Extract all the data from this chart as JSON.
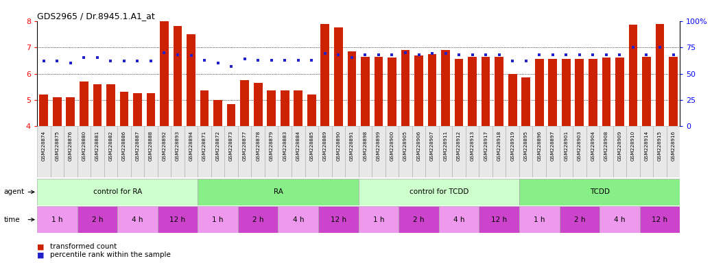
{
  "title": "GDS2965 / Dr.8945.1.A1_at",
  "samples": [
    "GSM228874",
    "GSM228875",
    "GSM228876",
    "GSM228880",
    "GSM228881",
    "GSM228882",
    "GSM228886",
    "GSM228887",
    "GSM228888",
    "GSM228892",
    "GSM228893",
    "GSM228894",
    "GSM228871",
    "GSM228872",
    "GSM228873",
    "GSM228877",
    "GSM228878",
    "GSM228879",
    "GSM228883",
    "GSM228884",
    "GSM228885",
    "GSM228889",
    "GSM228890",
    "GSM228891",
    "GSM228898",
    "GSM228899",
    "GSM228900",
    "GSM228905",
    "GSM228906",
    "GSM228907",
    "GSM228911",
    "GSM228912",
    "GSM228913",
    "GSM228917",
    "GSM228918",
    "GSM228919",
    "GSM228895",
    "GSM228896",
    "GSM228897",
    "GSM228901",
    "GSM228903",
    "GSM228904",
    "GSM228908",
    "GSM228909",
    "GSM228910",
    "GSM228914",
    "GSM228915",
    "GSM228916"
  ],
  "transformed_count": [
    5.2,
    5.1,
    5.1,
    5.7,
    5.6,
    5.6,
    5.3,
    5.25,
    5.25,
    8.0,
    7.8,
    7.5,
    5.35,
    5.0,
    4.85,
    5.75,
    5.65,
    5.35,
    5.35,
    5.35,
    5.2,
    7.9,
    7.75,
    6.85,
    6.65,
    6.65,
    6.6,
    6.9,
    6.7,
    6.75,
    6.9,
    6.55,
    6.65,
    6.65,
    6.65,
    6.0,
    5.85,
    6.55,
    6.55,
    6.55,
    6.55,
    6.55,
    6.6,
    6.6,
    7.85,
    6.65,
    7.9,
    6.65
  ],
  "percentile_rank": [
    62,
    62,
    60,
    65,
    65,
    62,
    62,
    62,
    62,
    70,
    68,
    67,
    63,
    60,
    57,
    64,
    63,
    63,
    63,
    63,
    63,
    69,
    68,
    65,
    68,
    68,
    68,
    70,
    68,
    69,
    69,
    68,
    68,
    68,
    68,
    62,
    62,
    68,
    68,
    68,
    68,
    68,
    68,
    68,
    75,
    68,
    75,
    68
  ],
  "bar_color": "#cc2200",
  "dot_color": "#2222cc",
  "ylim_left": [
    4,
    8
  ],
  "ylim_right": [
    0,
    100
  ],
  "yticks_left": [
    4,
    5,
    6,
    7,
    8
  ],
  "yticks_right": [
    0,
    25,
    50,
    75,
    100
  ],
  "ytick_right_labels": [
    "0",
    "25",
    "50",
    "75",
    "100%"
  ],
  "groups": [
    {
      "label": "control for RA",
      "start": 0,
      "end": 12,
      "color": "#ccffcc"
    },
    {
      "label": "RA",
      "start": 12,
      "end": 24,
      "color": "#88ee88"
    },
    {
      "label": "control for TCDD",
      "start": 24,
      "end": 36,
      "color": "#ccffcc"
    },
    {
      "label": "TCDD",
      "start": 36,
      "end": 48,
      "color": "#88ee88"
    }
  ],
  "timepoints": [
    {
      "label": "1 h",
      "start": 0,
      "end": 3,
      "color": "#ee99ee"
    },
    {
      "label": "2 h",
      "start": 3,
      "end": 6,
      "color": "#cc44cc"
    },
    {
      "label": "4 h",
      "start": 6,
      "end": 9,
      "color": "#ee99ee"
    },
    {
      "label": "12 h",
      "start": 9,
      "end": 12,
      "color": "#cc44cc"
    },
    {
      "label": "1 h",
      "start": 12,
      "end": 15,
      "color": "#ee99ee"
    },
    {
      "label": "2 h",
      "start": 15,
      "end": 18,
      "color": "#cc44cc"
    },
    {
      "label": "4 h",
      "start": 18,
      "end": 21,
      "color": "#ee99ee"
    },
    {
      "label": "12 h",
      "start": 21,
      "end": 24,
      "color": "#cc44cc"
    },
    {
      "label": "1 h",
      "start": 24,
      "end": 27,
      "color": "#ee99ee"
    },
    {
      "label": "2 h",
      "start": 27,
      "end": 30,
      "color": "#cc44cc"
    },
    {
      "label": "4 h",
      "start": 30,
      "end": 33,
      "color": "#ee99ee"
    },
    {
      "label": "12 h",
      "start": 33,
      "end": 36,
      "color": "#cc44cc"
    },
    {
      "label": "1 h",
      "start": 36,
      "end": 39,
      "color": "#ee99ee"
    },
    {
      "label": "2 h",
      "start": 39,
      "end": 42,
      "color": "#cc44cc"
    },
    {
      "label": "4 h",
      "start": 42,
      "end": 45,
      "color": "#ee99ee"
    },
    {
      "label": "12 h",
      "start": 45,
      "end": 48,
      "color": "#cc44cc"
    }
  ],
  "agent_label": "agent",
  "time_label": "time",
  "legend_bar": "transformed count",
  "legend_dot": "percentile rank within the sample",
  "n_samples": 48
}
